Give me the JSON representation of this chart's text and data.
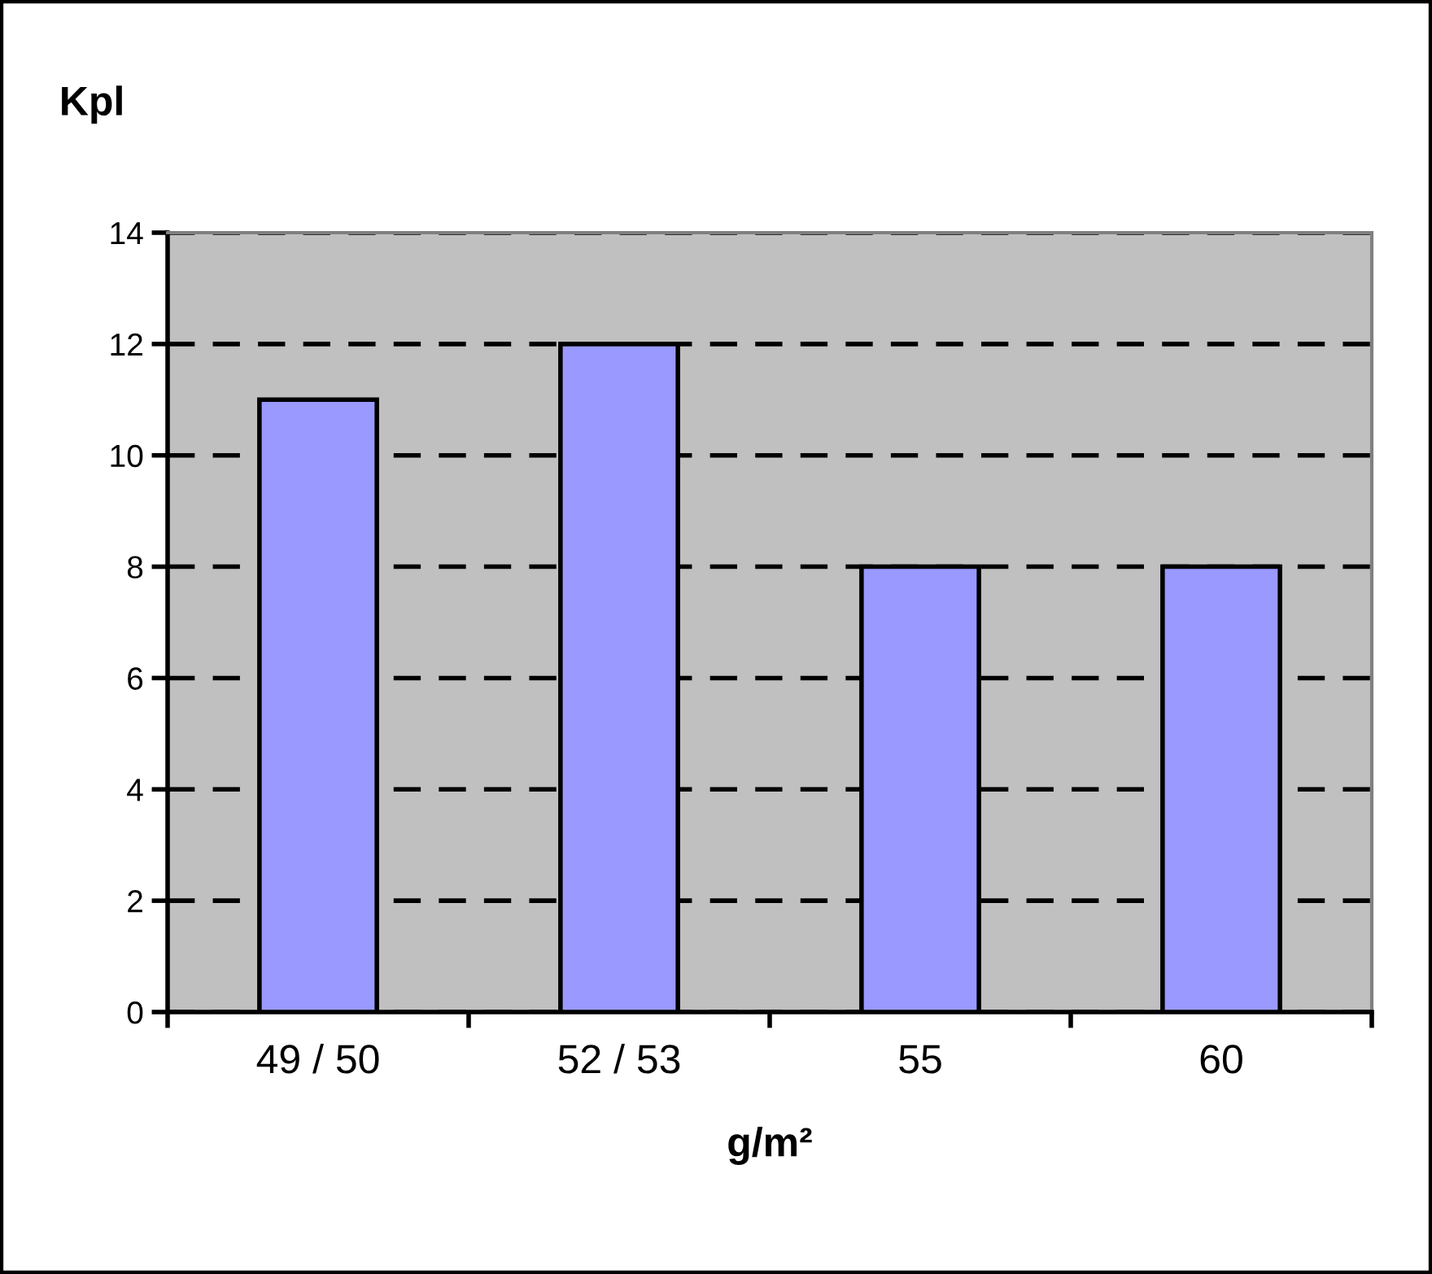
{
  "chart_data": {
    "type": "bar",
    "ylabel": "Kpl",
    "xlabel": "g/m²",
    "categories": [
      "49 / 50",
      "52 / 53",
      "55",
      "60"
    ],
    "values": [
      11,
      12,
      8,
      8
    ],
    "color": "#9999ff",
    "ylim": [
      0,
      14
    ],
    "yticks": [
      0,
      2,
      4,
      6,
      8,
      10,
      12,
      14
    ],
    "grid": "y",
    "line_style": "dashed",
    "legend": false
  }
}
